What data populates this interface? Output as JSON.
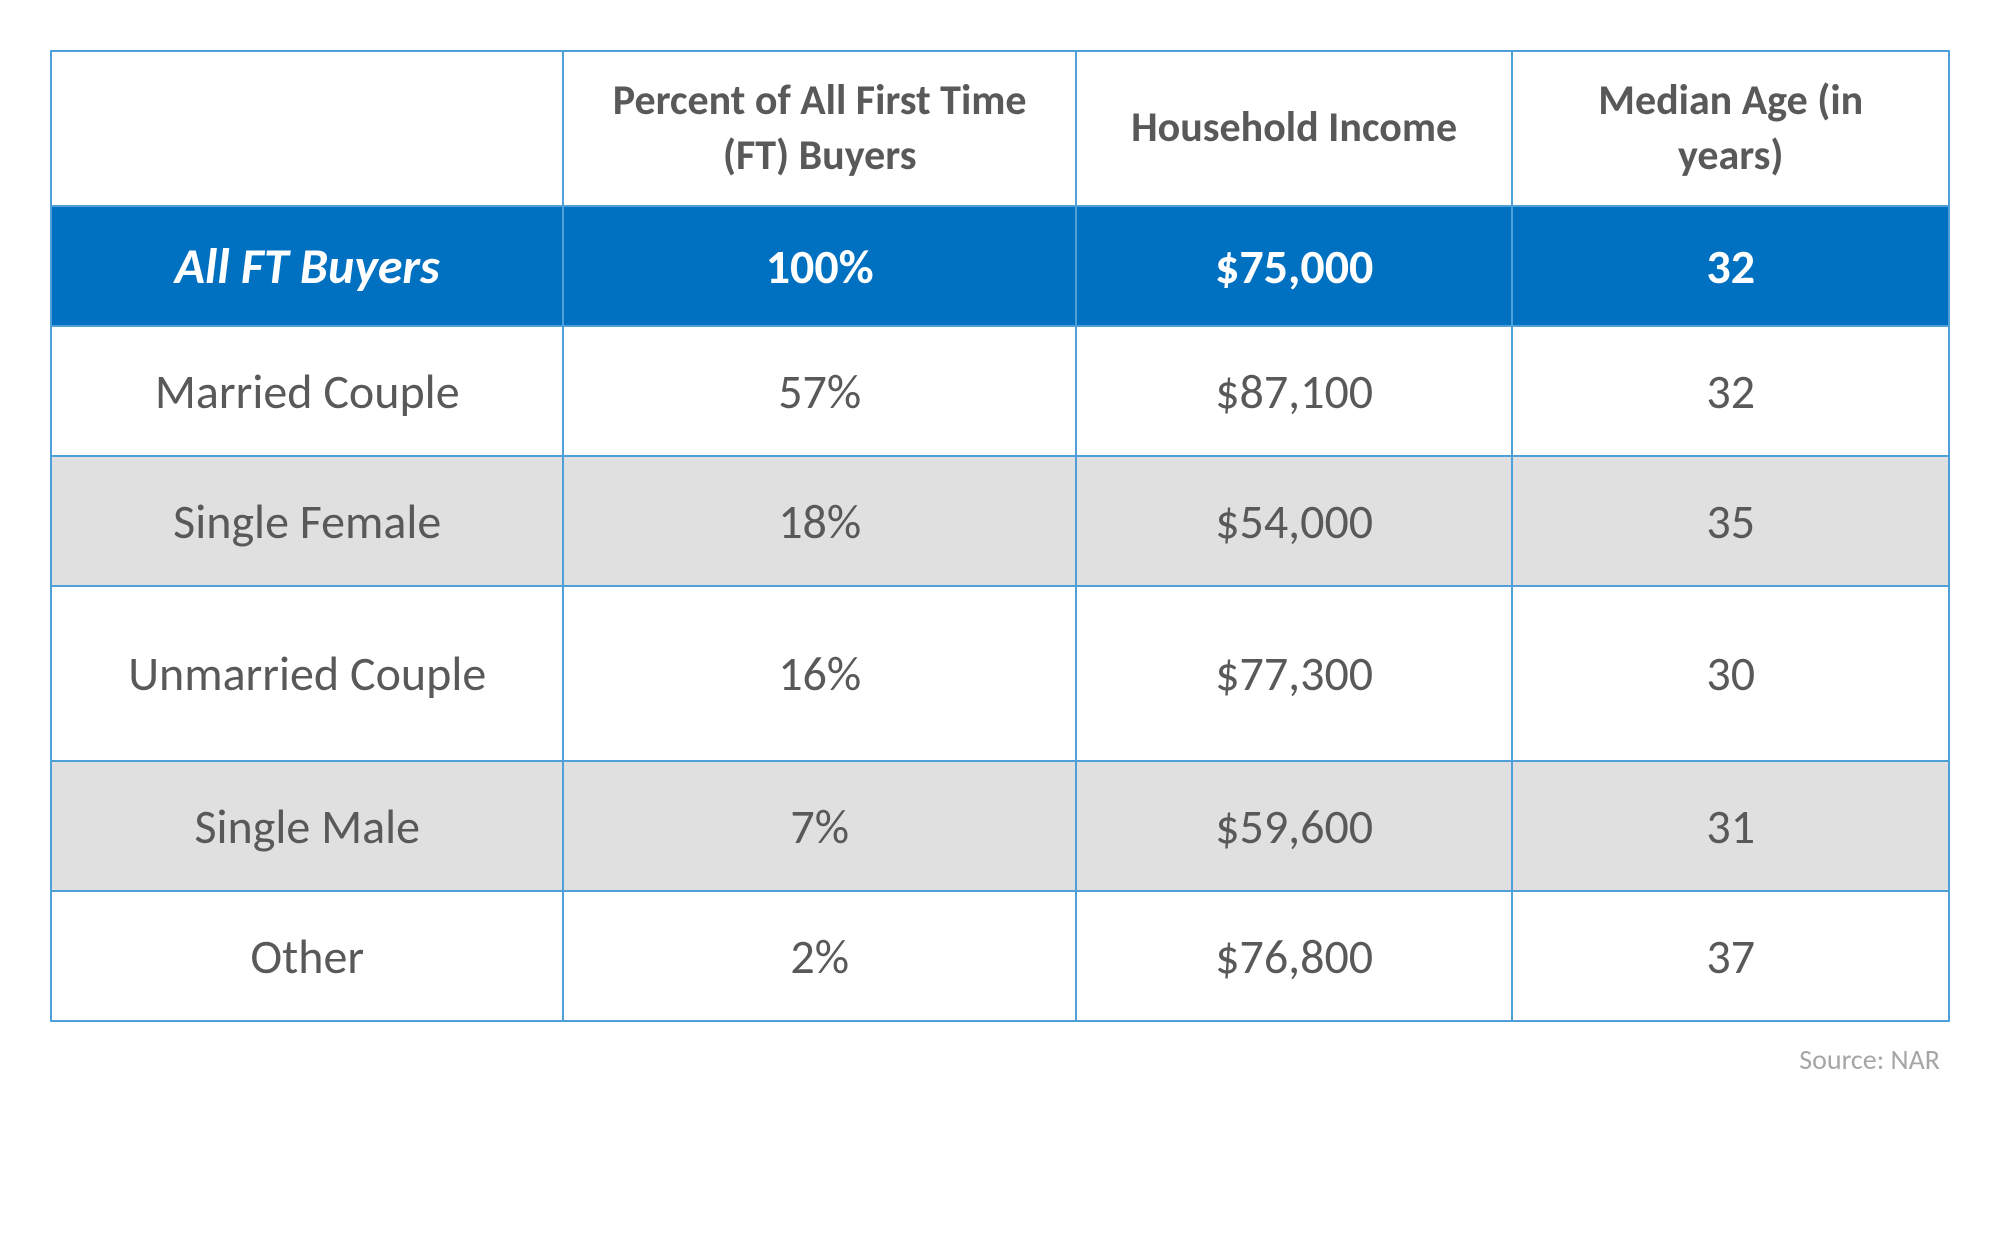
{
  "table": {
    "columns": [
      "",
      "Percent of All First Time (FT) Buyers",
      "Household Income",
      "Median Age (in years)"
    ],
    "highlight_row": {
      "category": "All FT Buyers",
      "percent": "100%",
      "income": "$75,000",
      "age": "32"
    },
    "rows": [
      {
        "category": "Married Couple",
        "percent": "57%",
        "income": "$87,100",
        "age": "32",
        "alt": false,
        "multiline": false
      },
      {
        "category": "Single Female",
        "percent": "18%",
        "income": "$54,000",
        "age": "35",
        "alt": true,
        "multiline": false
      },
      {
        "category": "Unmarried Couple",
        "percent": "16%",
        "income": "$77,300",
        "age": "30",
        "alt": false,
        "multiline": true
      },
      {
        "category": "Single Male",
        "percent": "7%",
        "income": "$59,600",
        "age": "31",
        "alt": true,
        "multiline": false
      },
      {
        "category": "Other",
        "percent": "2%",
        "income": "$76,800",
        "age": "37",
        "alt": false,
        "multiline": false
      }
    ]
  },
  "source_label": "Source: NAR",
  "styling": {
    "border_color": "#4f9fd8",
    "highlight_bg": "#0070c0",
    "highlight_text": "#ffffff",
    "header_text_color": "#595959",
    "body_text_color": "#595959",
    "alt_row_bg": "#e0e0e0",
    "background_color": "#ffffff",
    "source_text_color": "#a6a6a6",
    "header_fontsize": 42,
    "highlight_fontsize": 48,
    "body_fontsize": 48,
    "source_fontsize": 28,
    "font_family": "Calibri"
  }
}
